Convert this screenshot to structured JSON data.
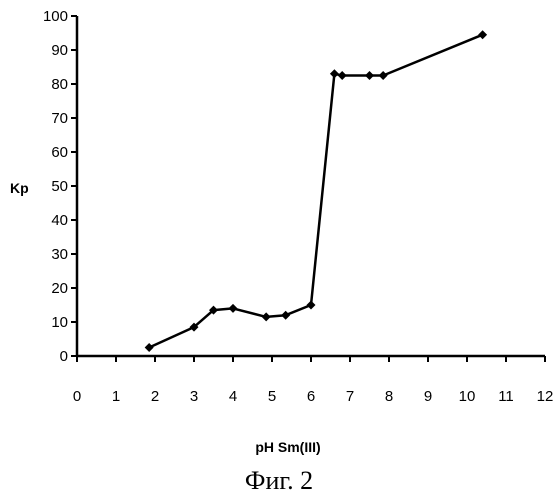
{
  "chart_data": {
    "type": "line",
    "xlabel": "pH Sm(III)",
    "ylabel": "Kp",
    "xlim": [
      0,
      12
    ],
    "ylim": [
      0,
      100
    ],
    "x_ticks": [
      0,
      1,
      2,
      3,
      4,
      5,
      6,
      7,
      8,
      9,
      10,
      11,
      12
    ],
    "y_ticks": [
      0,
      10,
      20,
      30,
      40,
      50,
      60,
      70,
      80,
      90,
      100
    ],
    "grid": false,
    "series": [
      {
        "x": [
          1.85,
          3.0,
          3.5,
          4.0,
          4.85,
          5.35,
          6.0,
          6.6,
          6.8,
          7.5,
          7.85,
          10.4
        ],
        "y": [
          2.5,
          8.5,
          13.5,
          14.0,
          11.5,
          12.0,
          15.0,
          83.0,
          82.5,
          82.5,
          82.5,
          94.5
        ],
        "color": "#000000"
      }
    ]
  },
  "figure_caption": "Фиг. 2"
}
